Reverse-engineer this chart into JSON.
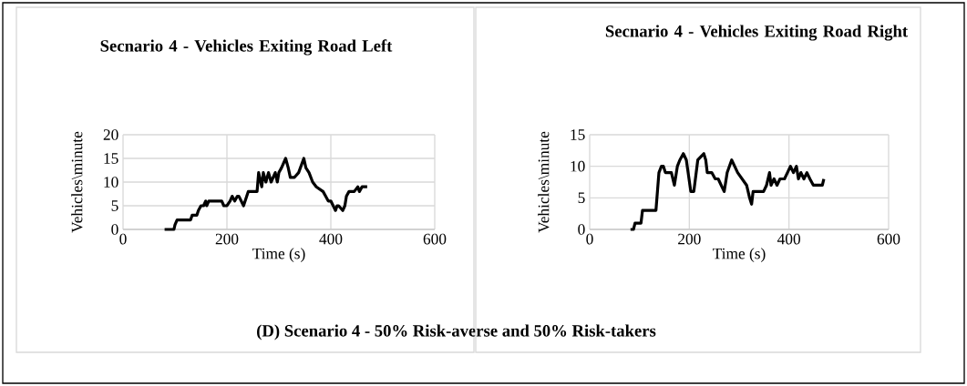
{
  "chart_data": [
    {
      "type": "line",
      "title": "Secnario 4 - Vehicles Exiting Road Left",
      "xlabel": "Time (s)",
      "ylabel": "Vehicles\\minute",
      "xlim": [
        0,
        600
      ],
      "xticks": [
        0,
        200,
        400,
        600
      ],
      "ylim": [
        0,
        20
      ],
      "yticks": [
        0,
        5,
        10,
        15,
        20
      ],
      "grid": true,
      "marker": "none",
      "line_style": "solid",
      "annotations": [
        "(D) Scenario 4 - 50% Risk-averse and 50% Risk-takers"
      ],
      "series": [
        {
          "color": "#000000",
          "x": [
            80,
            98,
            100,
            104,
            130,
            133,
            142,
            145,
            150,
            155,
            159,
            161,
            165,
            190,
            194,
            200,
            206,
            210,
            215,
            220,
            223,
            232,
            241,
            258,
            261,
            267,
            270,
            275,
            280,
            285,
            293,
            297,
            300,
            305,
            313,
            318,
            322,
            330,
            338,
            348,
            352,
            358,
            365,
            372,
            385,
            390,
            395,
            400,
            409,
            412,
            415,
            423,
            427,
            430,
            435,
            445,
            452,
            455,
            460,
            470
          ],
          "values": [
            0,
            0,
            1,
            2,
            2,
            3,
            3,
            4,
            5,
            5,
            6,
            5,
            6,
            6,
            5,
            5,
            6,
            7,
            6,
            7,
            7,
            5,
            8,
            8,
            12,
            9,
            12,
            10,
            12,
            10,
            12,
            10,
            12,
            13,
            15,
            13,
            11,
            11,
            12,
            15,
            13,
            12,
            10,
            9,
            8,
            7,
            6,
            6,
            4,
            5,
            5,
            4,
            5,
            7,
            8,
            8,
            9,
            8,
            9,
            9
          ]
        }
      ]
    },
    {
      "type": "line",
      "title": "Secnario 4 - Vehicles Exiting Road Right",
      "xlabel": "Time (s)",
      "ylabel": "Vehicles\\minute",
      "xlim": [
        0,
        600
      ],
      "xticks": [
        0,
        200,
        400,
        600
      ],
      "ylim": [
        0,
        15
      ],
      "yticks": [
        0,
        5,
        10,
        15
      ],
      "grid": true,
      "marker": "none",
      "line_style": "solid",
      "series": [
        {
          "color": "#000000",
          "x": [
            82,
            88,
            91,
            103,
            106,
            133,
            139,
            144,
            148,
            152,
            164,
            170,
            176,
            181,
            188,
            194,
            203,
            209,
            217,
            229,
            233,
            236,
            245,
            252,
            258,
            264,
            270,
            276,
            285,
            291,
            297,
            306,
            315,
            321,
            325,
            328,
            349,
            355,
            361,
            364,
            370,
            376,
            382,
            391,
            397,
            403,
            409,
            415,
            419,
            424,
            430,
            436,
            442,
            449,
            467,
            470
          ],
          "values": [
            0,
            0,
            1,
            1,
            3,
            3,
            9,
            10,
            10,
            9,
            9,
            7,
            10,
            11,
            12,
            11,
            6,
            6,
            11,
            12,
            11,
            9,
            9,
            8,
            8,
            7,
            6,
            9,
            11,
            10,
            9,
            8,
            7,
            5,
            4,
            6,
            6,
            7,
            9,
            7,
            8,
            7,
            8,
            8,
            9,
            10,
            9,
            10,
            8,
            9,
            8,
            9,
            8,
            7,
            7,
            8
          ]
        }
      ]
    }
  ]
}
